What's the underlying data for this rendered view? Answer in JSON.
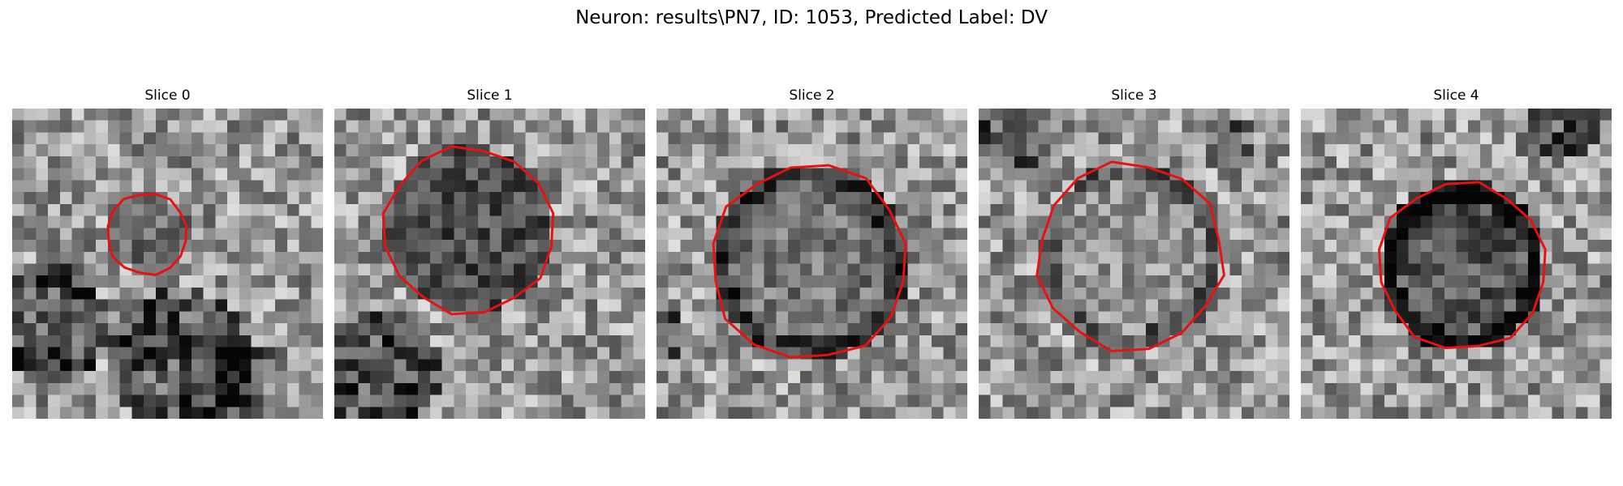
{
  "figure": {
    "title": "Neuron: results\\PN7, ID: 1053, Predicted Label: DV"
  },
  "panels": [
    {
      "title": "Slice 0"
    },
    {
      "title": "Slice 1"
    },
    {
      "title": "Slice 2"
    },
    {
      "title": "Slice 3"
    },
    {
      "title": "Slice 4"
    }
  ],
  "style": {
    "contour_color": "#e81010",
    "colormap": "grayscale"
  }
}
